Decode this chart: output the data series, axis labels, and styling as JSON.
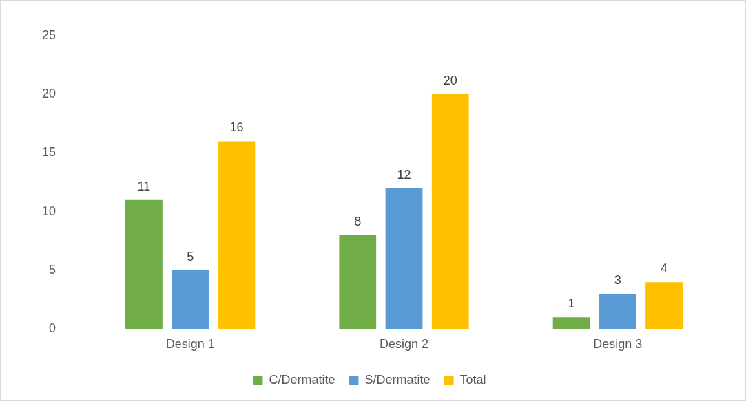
{
  "chart_data": {
    "type": "bar",
    "categories": [
      "Design 1",
      "Design 2",
      "Design 3"
    ],
    "series": [
      {
        "name": "C/Dermatite",
        "color": "#70ad47",
        "values": [
          11,
          8,
          1
        ]
      },
      {
        "name": "S/Dermatite",
        "color": "#5b9bd5",
        "values": [
          5,
          12,
          3
        ]
      },
      {
        "name": "Total",
        "color": "#ffc000",
        "values": [
          16,
          20,
          4
        ]
      }
    ],
    "ylim": [
      0,
      25
    ],
    "yticks": [
      0,
      5,
      10,
      15,
      20,
      25
    ],
    "grid": false,
    "legend": "bottom",
    "data_labels": true
  }
}
